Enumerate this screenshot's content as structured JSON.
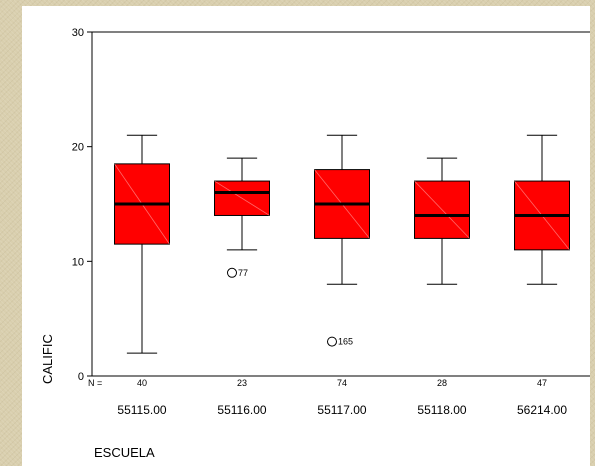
{
  "chart_data": {
    "type": "boxplot",
    "xlabel": "ESCUELA",
    "ylabel": "CALIFIC",
    "ylim": [
      0,
      30
    ],
    "yticks": [
      0,
      10,
      20,
      30
    ],
    "n_prefix": "N =",
    "box_color": "#ff0000",
    "categories": [
      "55115.00",
      "55116.00",
      "55117.00",
      "55118.00",
      "56214.00"
    ],
    "n": [
      "40",
      "23",
      "74",
      "28",
      "47"
    ],
    "boxes": [
      {
        "whisker_low": 2,
        "q1": 11.5,
        "median": 15,
        "q3": 18.5,
        "whisker_high": 21,
        "outliers": []
      },
      {
        "whisker_low": 11,
        "q1": 14,
        "median": 16,
        "q3": 17,
        "whisker_high": 19,
        "outliers": [
          {
            "value": 9,
            "label": "77"
          }
        ]
      },
      {
        "whisker_low": 8,
        "q1": 12,
        "median": 15,
        "q3": 18,
        "whisker_high": 21,
        "outliers": [
          {
            "value": 3,
            "label": "165"
          }
        ]
      },
      {
        "whisker_low": 8,
        "q1": 12,
        "median": 14,
        "q3": 17,
        "whisker_high": 19,
        "outliers": []
      },
      {
        "whisker_low": 8,
        "q1": 11,
        "median": 14,
        "q3": 17,
        "whisker_high": 21,
        "outliers": []
      }
    ]
  }
}
